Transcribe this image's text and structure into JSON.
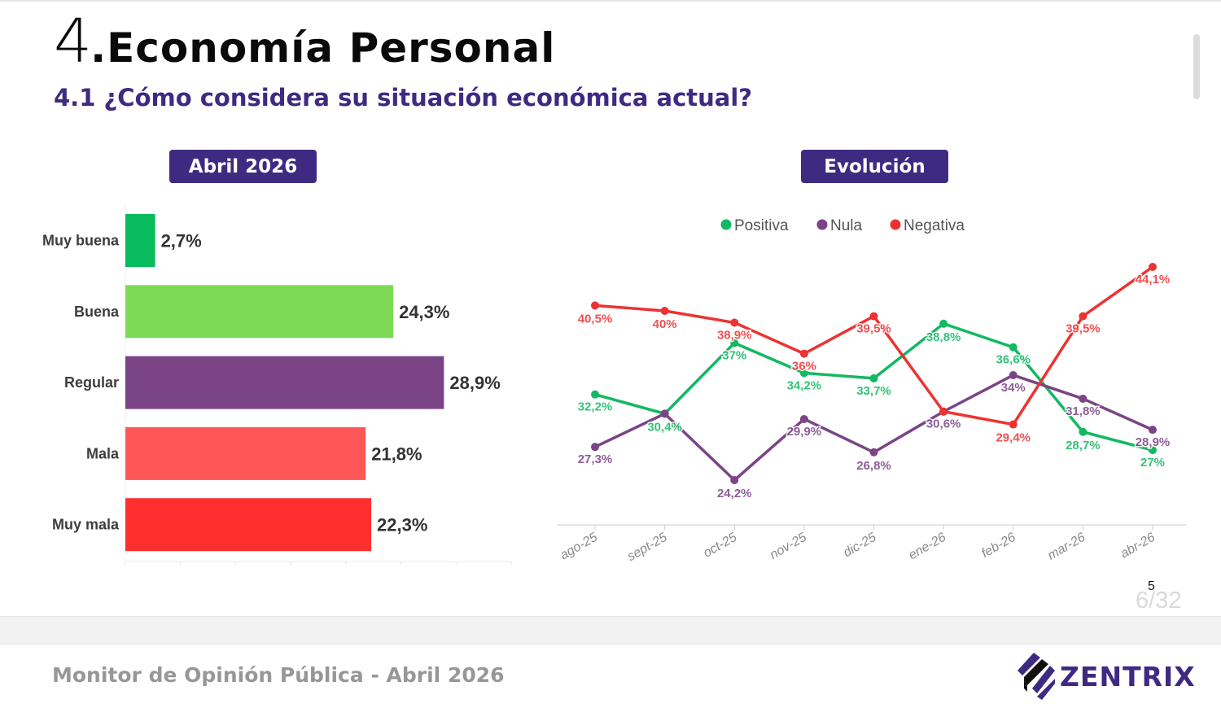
{
  "header": {
    "section_number": "4",
    "section_title": ".Economía Personal",
    "question": "4.1 ¿Cómo considera su situación económica actual?"
  },
  "panels": {
    "left_label": "Abril 2026",
    "right_label": "Evolución"
  },
  "colors": {
    "brand_purple": "#3f2a82",
    "positiva": "#13b862",
    "nula": "#7b4486",
    "negativa": "#ee3232"
  },
  "chart_data": [
    {
      "type": "bar",
      "orientation": "horizontal",
      "title": "Abril 2026",
      "categories": [
        "Muy buena",
        "Buena",
        "Regular",
        "Mala",
        "Muy mala"
      ],
      "values": [
        2.7,
        24.3,
        28.9,
        21.8,
        22.3
      ],
      "value_labels": [
        "2,7%",
        "24,3%",
        "28,9%",
        "21,8%",
        "22,3%"
      ],
      "colors": [
        "#08bb5c",
        "#7ed957",
        "#7b4486",
        "#ff5757",
        "#ff2f2f"
      ],
      "xlim": [
        0,
        35
      ],
      "xticks": [
        0,
        5,
        10,
        15,
        20,
        25,
        30,
        35
      ],
      "grid": false,
      "unit": "%"
    },
    {
      "type": "line",
      "title": "Evolución",
      "categories": [
        "ago-25",
        "sept-25",
        "oct-25",
        "nov-25",
        "dic-25",
        "ene-26",
        "feb-26",
        "mar-26",
        "abr-26"
      ],
      "series": [
        {
          "name": "Positiva",
          "color": "#13b862",
          "values": [
            32.2,
            30.4,
            37,
            34.2,
            33.7,
            38.8,
            36.6,
            28.7,
            27
          ],
          "labels": [
            "32,2%",
            "30,4%",
            "37%",
            "34,2%",
            "33,7%",
            "38,8%",
            "36,6%",
            "28,7%",
            "27%"
          ]
        },
        {
          "name": "Nula",
          "color": "#7b4486",
          "values": [
            27.3,
            30.4,
            24.2,
            29.9,
            26.8,
            30.6,
            34,
            31.8,
            28.9
          ],
          "labels": [
            "27,3%",
            "",
            "24,2%",
            "29,9%",
            "26,8%",
            "30,6%",
            "34%",
            "31,8%",
            "28,9%"
          ]
        },
        {
          "name": "Negativa",
          "color": "#ee3232",
          "values": [
            40.5,
            40,
            38.9,
            36,
            39.5,
            30.6,
            29.4,
            39.5,
            44.1
          ],
          "labels": [
            "40,5%",
            "40%",
            "38,9%",
            "36%",
            "39,5%",
            "",
            "29,4%",
            "39,5%",
            "44,1%"
          ]
        }
      ],
      "legend": [
        "Positiva",
        "Nula",
        "Negativa"
      ],
      "legend_position": "top-center",
      "ylim": [
        20,
        45
      ],
      "grid": false,
      "unit": "%"
    }
  ],
  "pagination": {
    "page_number": "5",
    "page_count": "6/32"
  },
  "footer": {
    "text": "Monitor de Opinión Pública - Abril 2026",
    "brand": "ZENTRIX"
  }
}
